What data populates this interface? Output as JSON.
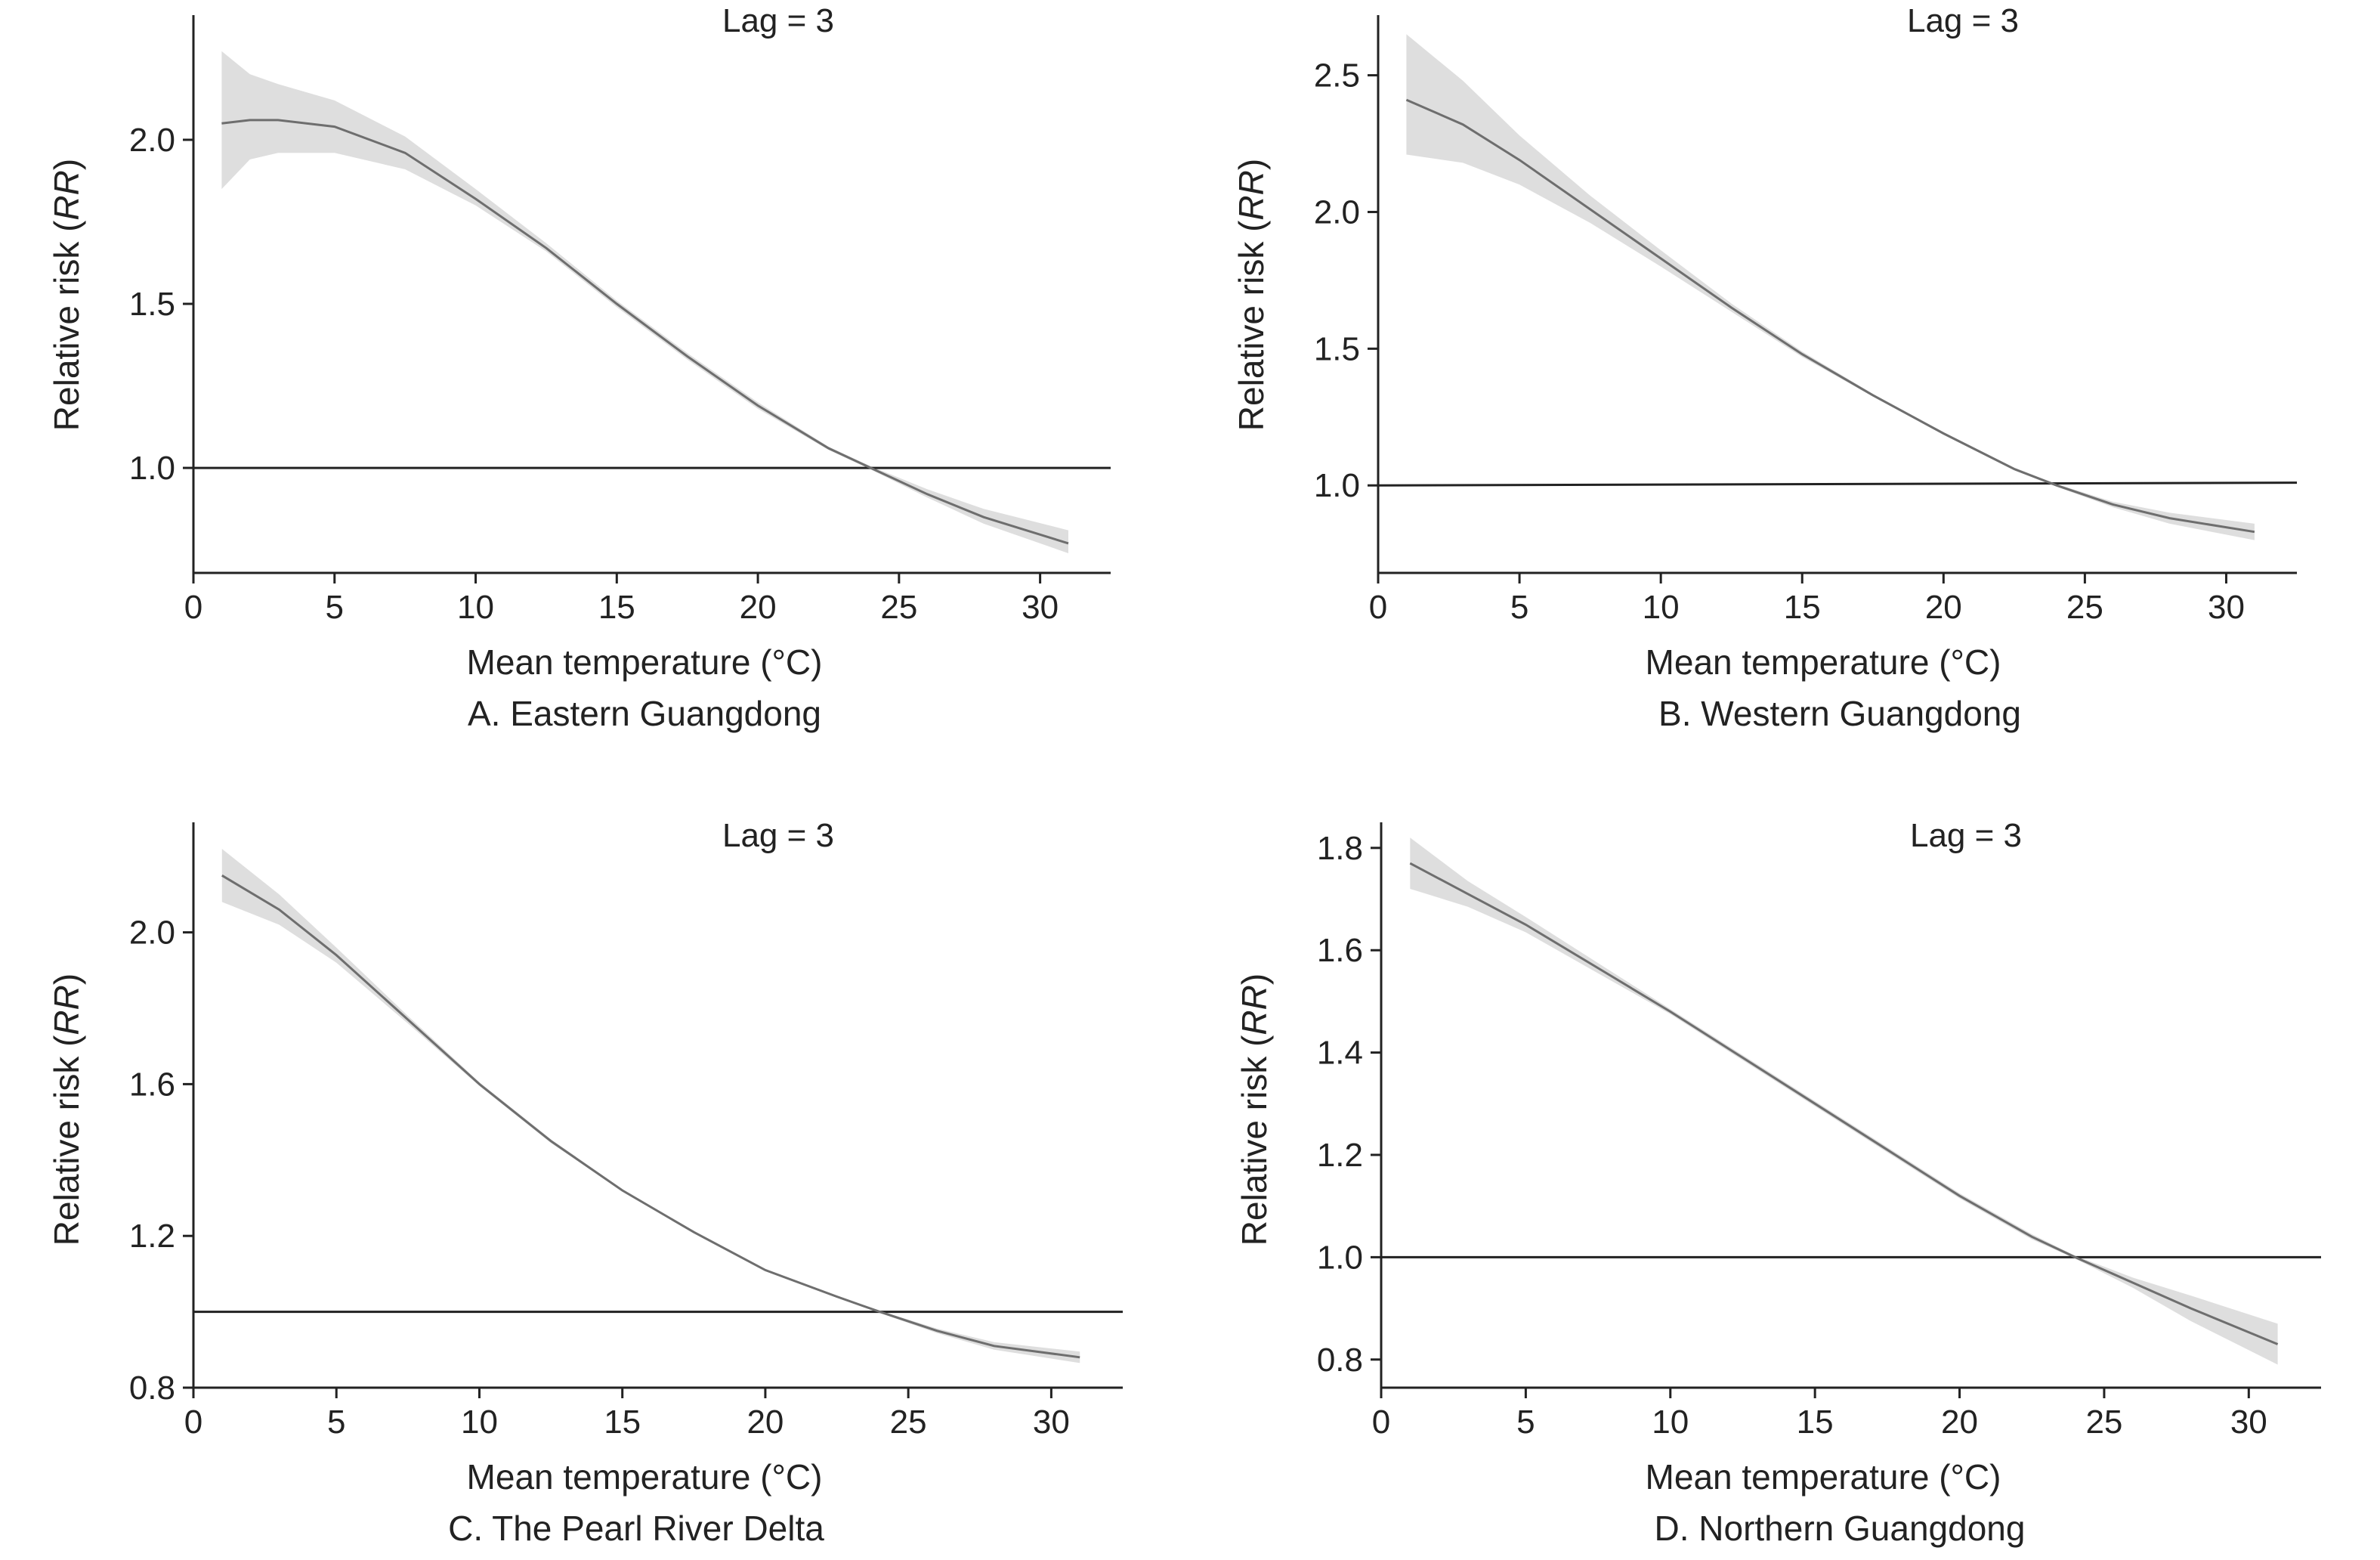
{
  "chart_data": [
    {
      "type": "line",
      "panel": "A",
      "caption": "A. Eastern Guangdong",
      "title": "Lag = 3",
      "xlabel": "Mean temperature (°C)",
      "ylabel_prefix": "Relative risk (",
      "ylabel_italic": "RR",
      "ylabel_suffix": ")",
      "xlim": [
        0,
        32.5
      ],
      "ylim": [
        0.68,
        2.38
      ],
      "xticks": [
        0,
        5,
        10,
        15,
        20,
        25,
        30
      ],
      "yticks": [
        1.0,
        1.5,
        2.0
      ],
      "ytick_labels": [
        "1.0",
        "1.5",
        "2.0"
      ],
      "reference_line": [
        [
          0,
          1.0
        ],
        [
          32.5,
          1.0
        ]
      ],
      "series": [
        {
          "x": [
            1,
            2,
            3,
            5,
            7.5,
            10,
            12.5,
            15,
            17.5,
            20,
            22.5,
            24,
            26,
            28,
            31
          ],
          "y": [
            2.05,
            2.06,
            2.06,
            2.04,
            1.96,
            1.82,
            1.67,
            1.5,
            1.34,
            1.19,
            1.06,
            1.0,
            0.92,
            0.85,
            0.77
          ],
          "lower": [
            1.85,
            1.94,
            1.96,
            1.96,
            1.91,
            1.8,
            1.66,
            1.49,
            1.33,
            1.18,
            1.055,
            0.995,
            0.91,
            0.83,
            0.74
          ],
          "upper": [
            2.27,
            2.2,
            2.17,
            2.12,
            2.01,
            1.85,
            1.685,
            1.51,
            1.35,
            1.2,
            1.065,
            1.005,
            0.935,
            0.875,
            0.81
          ]
        }
      ]
    },
    {
      "type": "line",
      "panel": "B",
      "caption": "B. Western Guangdong",
      "title": "Lag = 3",
      "xlabel": "Mean temperature (°C)",
      "ylabel_prefix": "Relative risk (",
      "ylabel_italic": "RR",
      "ylabel_suffix": ")",
      "xlim": [
        0,
        32.5
      ],
      "ylim": [
        0.68,
        2.72
      ],
      "xticks": [
        0,
        5,
        10,
        15,
        20,
        25,
        30
      ],
      "yticks": [
        1.0,
        1.5,
        2.0,
        2.5
      ],
      "ytick_labels": [
        "1.0",
        "1.5",
        "2.0",
        "2.5"
      ],
      "reference_line": [
        [
          0,
          1.0
        ],
        [
          32.5,
          1.01
        ]
      ],
      "series": [
        {
          "x": [
            1,
            3,
            5,
            7.5,
            10,
            12.5,
            15,
            17.5,
            20,
            22.5,
            24,
            26,
            28,
            31
          ],
          "y": [
            2.41,
            2.32,
            2.19,
            2.01,
            1.83,
            1.65,
            1.48,
            1.33,
            1.19,
            1.06,
            1.0,
            0.93,
            0.88,
            0.83
          ],
          "lower": [
            2.21,
            2.18,
            2.1,
            1.96,
            1.8,
            1.635,
            1.47,
            1.325,
            1.185,
            1.055,
            0.995,
            0.92,
            0.86,
            0.8
          ],
          "upper": [
            2.65,
            2.48,
            2.28,
            2.06,
            1.86,
            1.665,
            1.49,
            1.335,
            1.195,
            1.065,
            1.005,
            0.94,
            0.9,
            0.86
          ]
        }
      ]
    },
    {
      "type": "line",
      "panel": "C",
      "caption": "C. The Pearl River Delta",
      "title": "Lag = 3",
      "xlabel": "Mean temperature (°C)",
      "ylabel_prefix": "Relative risk (",
      "ylabel_italic": "RR",
      "ylabel_suffix": ")",
      "xlim": [
        0,
        32.5
      ],
      "ylim": [
        0.8,
        2.29
      ],
      "xticks": [
        0,
        5,
        10,
        15,
        20,
        25,
        30
      ],
      "yticks": [
        0.8,
        1.2,
        1.6,
        2.0
      ],
      "ytick_labels": [
        "0.8",
        "1.2",
        "1.6",
        "2.0"
      ],
      "reference_line": [
        [
          0,
          1.0
        ],
        [
          32.5,
          1.0
        ]
      ],
      "series": [
        {
          "x": [
            1,
            3,
            5,
            7.5,
            10,
            12.5,
            15,
            17.5,
            20,
            22.5,
            24,
            26,
            28,
            31
          ],
          "y": [
            2.15,
            2.06,
            1.94,
            1.77,
            1.6,
            1.45,
            1.32,
            1.21,
            1.11,
            1.04,
            1.0,
            0.95,
            0.91,
            0.88
          ],
          "lower": [
            2.08,
            2.02,
            1.92,
            1.76,
            1.595,
            1.445,
            1.317,
            1.207,
            1.107,
            1.037,
            0.997,
            0.944,
            0.9,
            0.865
          ],
          "upper": [
            2.22,
            2.1,
            1.96,
            1.78,
            1.605,
            1.455,
            1.323,
            1.213,
            1.113,
            1.043,
            1.003,
            0.956,
            0.92,
            0.895
          ]
        }
      ]
    },
    {
      "type": "line",
      "panel": "D",
      "caption": "D. Northern Guangdong",
      "title": "Lag = 3",
      "xlabel": "Mean temperature (°C)",
      "ylabel_prefix": "Relative risk (",
      "ylabel_italic": "RR",
      "ylabel_suffix": ")",
      "xlim": [
        0,
        32.5
      ],
      "ylim": [
        0.745,
        1.85
      ],
      "xticks": [
        0,
        5,
        10,
        15,
        20,
        25,
        30
      ],
      "yticks": [
        0.8,
        1.0,
        1.2,
        1.4,
        1.6,
        1.8
      ],
      "ytick_labels": [
        "0.8",
        "1.0",
        "1.2",
        "1.4",
        "1.6",
        "1.8"
      ],
      "reference_line": [
        [
          0,
          1.0
        ],
        [
          32.5,
          1.0
        ]
      ],
      "series": [
        {
          "x": [
            1,
            3,
            5,
            7.5,
            10,
            12.5,
            15,
            17.5,
            20,
            22.5,
            24,
            26,
            28,
            31
          ],
          "y": [
            1.77,
            1.71,
            1.65,
            1.565,
            1.48,
            1.39,
            1.3,
            1.21,
            1.12,
            1.04,
            1.0,
            0.95,
            0.9,
            0.83
          ],
          "lower": [
            1.72,
            1.685,
            1.635,
            1.555,
            1.475,
            1.385,
            1.295,
            1.205,
            1.115,
            1.035,
            0.997,
            0.94,
            0.875,
            0.79
          ],
          "upper": [
            1.82,
            1.735,
            1.665,
            1.575,
            1.485,
            1.395,
            1.305,
            1.215,
            1.125,
            1.045,
            1.003,
            0.96,
            0.925,
            0.87
          ]
        }
      ]
    }
  ]
}
